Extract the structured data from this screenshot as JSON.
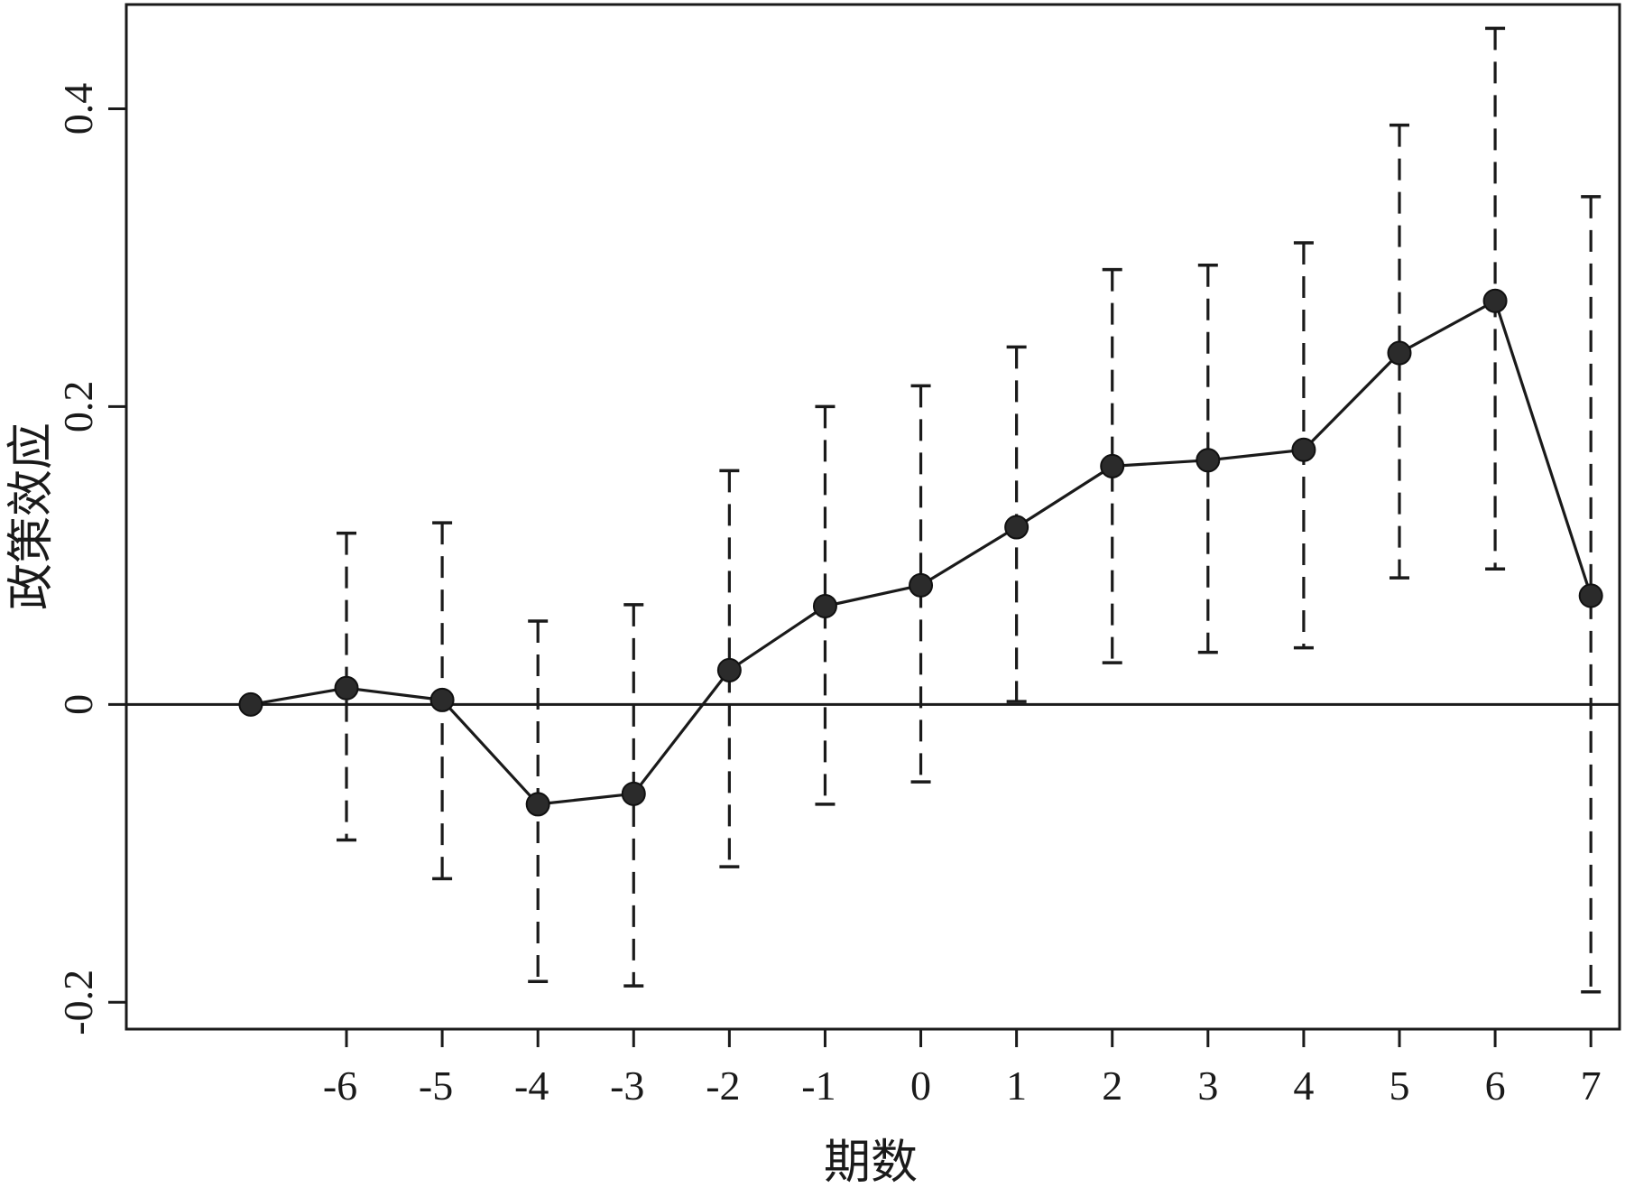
{
  "chart_data": {
    "type": "line",
    "title": "",
    "xlabel": "期数",
    "ylabel": "政策效应",
    "x": [
      -7,
      -6,
      -5,
      -4,
      -3,
      -2,
      -1,
      0,
      1,
      2,
      3,
      4,
      5,
      6,
      7
    ],
    "x_tick_values": [
      -6,
      -5,
      -4,
      -3,
      -2,
      -1,
      0,
      1,
      2,
      3,
      4,
      5,
      6,
      7
    ],
    "x_tick_labels": [
      "-6",
      "-5",
      "-4",
      "-3",
      "-2",
      "-1",
      "0",
      "1",
      "2",
      "3",
      "4",
      "5",
      "6",
      "7"
    ],
    "y_tick_values": [
      -0.2,
      0,
      0.2,
      0.4
    ],
    "y_tick_labels": [
      "-0.2",
      "0",
      "0.2",
      "0.4"
    ],
    "xlim": [
      -8.3,
      7.3
    ],
    "ylim": [
      -0.218,
      0.47
    ],
    "reference_line_y": 0,
    "grid": false,
    "series": [
      {
        "estimate": [
          0,
          0.011,
          0.003,
          -0.067,
          -0.06,
          0.023,
          0.066,
          0.08,
          0.119,
          0.16,
          0.164,
          0.171,
          0.236,
          0.271,
          0.073
        ],
        "ci_lower": [
          null,
          -0.091,
          -0.117,
          -0.186,
          -0.189,
          -0.109,
          -0.067,
          -0.052,
          0.002,
          0.028,
          0.035,
          0.038,
          0.085,
          0.091,
          -0.193
        ],
        "ci_upper": [
          null,
          0.115,
          0.122,
          0.056,
          0.067,
          0.157,
          0.2,
          0.214,
          0.24,
          0.292,
          0.295,
          0.31,
          0.389,
          0.454,
          0.341
        ]
      }
    ],
    "colors": {
      "line": "#1a1a1a",
      "marker": "#2b2b2b",
      "frame": "#1a1a1a"
    }
  }
}
